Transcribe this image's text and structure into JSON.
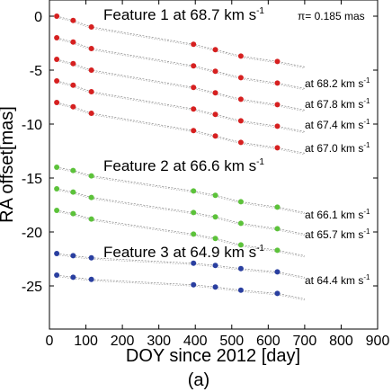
{
  "chart_data": {
    "type": "scatter",
    "xlabel": "DOY since 2012 [day]",
    "ylabel": "RA offset[mas]",
    "caption": "(a)",
    "parallax_note": "π= 0.185 mas",
    "xlim": [
      0,
      900
    ],
    "ylim": [
      -29,
      1.5
    ],
    "xticks": [
      "0",
      "100",
      "200",
      "300",
      "400",
      "500",
      "600",
      "700",
      "800",
      "900"
    ],
    "yticks": [
      "0",
      "-5",
      "-10",
      "-15",
      "-20",
      "-25"
    ],
    "colors": {
      "red": "#d62020",
      "green": "#5cc23a",
      "blue": "#2a3fa0",
      "line": "#888888"
    },
    "epochs": [
      20,
      65,
      115,
      395,
      455,
      525,
      625
    ],
    "features": [
      {
        "label": "Feature 1 at 68.7 km s",
        "sup": "-1",
        "color": "red",
        "series": [
          {
            "label": "",
            "values": [
              0,
              -0.4,
              -1.0,
              -2.6,
              -3.1,
              -3.7,
              -4.2
            ]
          },
          {
            "label": "",
            "values": [
              -2.0,
              -2.4,
              -3.0,
              -4.6,
              -5.1,
              -5.7,
              -6.2
            ]
          },
          {
            "label": "at 68.2 km s",
            "values": [
              -4.0,
              -4.4,
              -5.0,
              -6.6,
              -7.1,
              -7.7,
              -8.2
            ]
          },
          {
            "label": "at 67.8 km s",
            "values": [
              -6.0,
              -6.4,
              -7.0,
              -8.6,
              -9.1,
              -9.7,
              -10.2
            ]
          },
          {
            "label": "at 67.4 km s",
            "values": [
              -8.0,
              -8.4,
              -9.0,
              -10.6,
              -11.1,
              -11.7,
              -12.2
            ]
          },
          {
            "label": "at 67.0 km s",
            "values": [
              null,
              null,
              null,
              null,
              null,
              null,
              null
            ]
          }
        ]
      },
      {
        "label": "Feature 2 at 66.6 km s",
        "sup": "-1",
        "color": "green",
        "series": [
          {
            "label": "",
            "values": [
              -14.0,
              -14.3,
              -14.8,
              -16.2,
              -16.6,
              -17.2,
              -17.7
            ]
          },
          {
            "label": "at 66.1 km s",
            "values": [
              -16.0,
              -16.3,
              -16.8,
              -18.2,
              -18.6,
              -19.2,
              -19.7
            ]
          },
          {
            "label": "at 65.7 km s",
            "values": [
              -18.0,
              -18.3,
              -18.8,
              -20.2,
              -20.6,
              -21.2,
              -21.7
            ]
          }
        ]
      },
      {
        "label": "Feature 3 at 64.9 km s",
        "sup": "-1",
        "color": "blue",
        "series": [
          {
            "label": "",
            "values": [
              -22.0,
              -22.2,
              -22.4,
              -22.9,
              -23.1,
              -23.4,
              -23.7
            ]
          },
          {
            "label": "at 64.4 km s",
            "values": [
              -24.0,
              -24.2,
              -24.4,
              -24.9,
              -25.1,
              -25.4,
              -25.7
            ]
          }
        ]
      }
    ],
    "velocity_unit_sup": "-1"
  }
}
